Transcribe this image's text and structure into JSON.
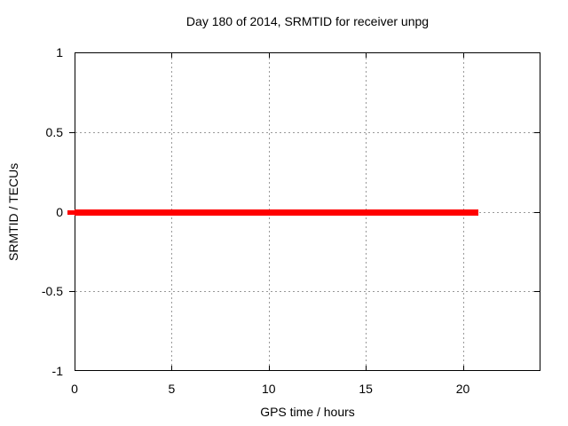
{
  "chart_data": {
    "type": "line",
    "title": "Day 180 of 2014, SRMTID for receiver unpg",
    "xlabel": "GPS time / hours",
    "ylabel": "SRMTID / TECUs",
    "xlim": [
      0,
      24
    ],
    "ylim": [
      -1,
      1
    ],
    "xticks": [
      0,
      5,
      10,
      15,
      20
    ],
    "yticks": [
      -1,
      -0.5,
      0,
      0.5,
      1
    ],
    "grid": true,
    "grid_color": "#999999",
    "frame_color": "#000000",
    "legend": "none",
    "series": [
      {
        "name": "SRMTID",
        "color": "#ff0000",
        "x": [
          0,
          20.8
        ],
        "y": [
          0,
          0
        ],
        "style": "thick-solid",
        "description": "constant zero value from 0 to 20.8 GPS hours"
      }
    ]
  }
}
